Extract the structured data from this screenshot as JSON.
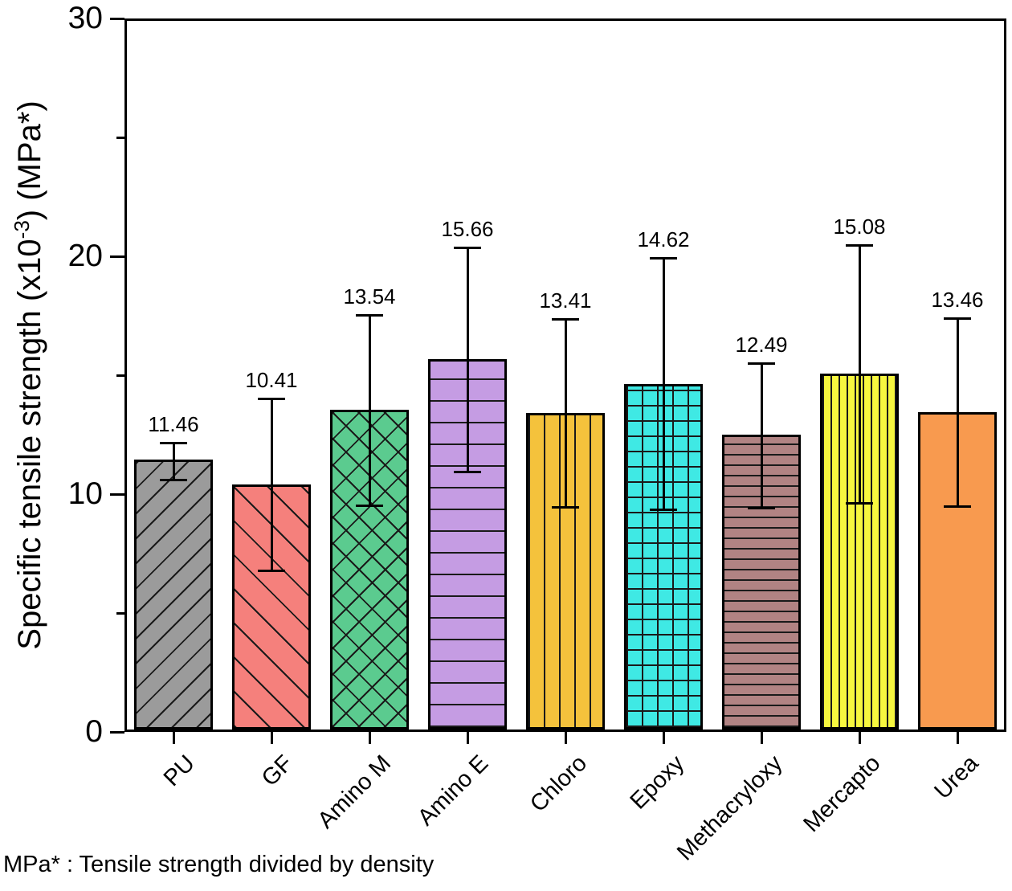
{
  "chart_data": {
    "type": "bar",
    "ylabel_prefix": "Specific tensile strength (x10",
    "ylabel_sup": "-3",
    "ylabel_suffix": ") (MPa*)",
    "footnote": "MPa* : Tensile strength divided by density",
    "ylim": [
      0,
      30
    ],
    "yticks": [
      0,
      10,
      20,
      30
    ],
    "minor_yticks": [
      5,
      15,
      25
    ],
    "grid": false,
    "legend": "none",
    "categories": [
      "PU",
      "GF",
      "Amino M",
      "Amino E",
      "Chloro",
      "Epoxy",
      "Methacryloxy",
      "Mercapto",
      "Urea"
    ],
    "values": [
      11.46,
      10.41,
      13.54,
      15.66,
      13.41,
      14.62,
      12.49,
      15.08,
      13.46
    ],
    "bars": [
      {
        "label": "PU",
        "value": 11.46,
        "value_label": "11.46",
        "err_up": 0.7,
        "err_down": 0.9,
        "color": "#9B9B9B",
        "hatch": "fwd",
        "gap": 22
      },
      {
        "label": "GF",
        "value": 10.41,
        "value_label": "10.41",
        "err_up": 3.6,
        "err_down": 3.65,
        "color": "#F5807C",
        "hatch": "back",
        "gap": 30
      },
      {
        "label": "Amino M",
        "value": 13.54,
        "value_label": "13.54",
        "err_up": 4.0,
        "err_down": 4.05,
        "color": "#5BCB8F",
        "hatch": "cross",
        "gap": 23
      },
      {
        "label": "Amino E",
        "value": 15.66,
        "value_label": "15.66",
        "err_up": 4.7,
        "err_down": 4.75,
        "color": "#C59CE3",
        "hatch": "horiz",
        "gap": 27
      },
      {
        "label": "Chloro",
        "value": 13.41,
        "value_label": "13.41",
        "err_up": 3.95,
        "err_down": 4.0,
        "color": "#F4C23C",
        "hatch": "vert",
        "gap": 19
      },
      {
        "label": "Epoxy",
        "value": 14.62,
        "value_label": "14.62",
        "err_up": 5.3,
        "err_down": 5.3,
        "color": "#3FE9E4",
        "hatch": "grid",
        "gap": 19
      },
      {
        "label": "Methacryloxy",
        "value": 12.49,
        "value_label": "12.49",
        "err_up": 3.0,
        "err_down": 3.1,
        "color": "#B18383",
        "hatch": "horiz",
        "gap": 13
      },
      {
        "label": "Mercapto",
        "value": 15.08,
        "value_label": "15.08",
        "err_up": 5.4,
        "err_down": 5.5,
        "color": "#F7F73F",
        "hatch": "vert",
        "gap": 10
      },
      {
        "label": "Urea",
        "value": 13.46,
        "value_label": "13.46",
        "err_up": 3.95,
        "err_down": 4.0,
        "color": "#F89A4F",
        "hatch": "none",
        "gap": 0
      }
    ],
    "colors": {
      "axis": "#000000",
      "hatch_line": "#1a1a1a"
    }
  }
}
